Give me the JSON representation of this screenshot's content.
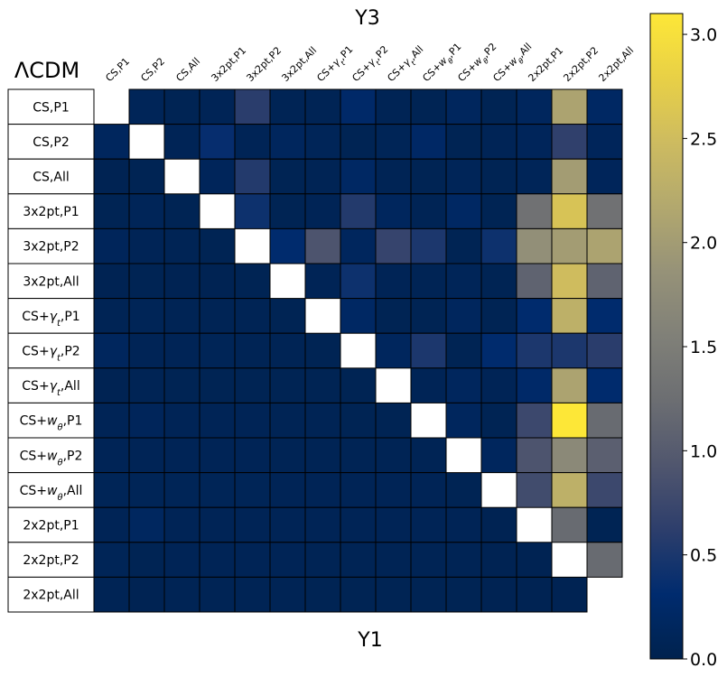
{
  "chart_data": {
    "type": "heatmap",
    "title": "ΛCDM",
    "top_label": "Y3",
    "bottom_label": "Y1",
    "row_labels": [
      "CS,P1",
      "CS,P2",
      "CS,All",
      "3x2pt,P1",
      "3x2pt,P2",
      "3x2pt,All",
      "CS+γt,P1",
      "CS+γt,P2",
      "CS+γt,All",
      "CS+wθ,P1",
      "CS+wθ,P2",
      "CS+wθ,All",
      "2x2pt,P1",
      "2x2pt,P2",
      "2x2pt,All"
    ],
    "col_labels": [
      "CS,P1",
      "CS,P2",
      "CS,All",
      "3x2pt,P1",
      "3x2pt,P2",
      "3x2pt,All",
      "CS+γt,P1",
      "CS+γt,P2",
      "CS+γt,All",
      "CS+wθ,P1",
      "CS+wθ,P2",
      "CS+wθ,All",
      "2x2pt,P1",
      "2x2pt,P2",
      "2x2pt,All"
    ],
    "colorbar": {
      "min": 0.0,
      "max": 3.1,
      "ticks": [
        "0.0",
        "0.5",
        "1.0",
        "1.5",
        "2.0",
        "2.5",
        "3.0"
      ],
      "tick_values": [
        0,
        0.5,
        1,
        1.5,
        2,
        2.5,
        3
      ],
      "colormap": "cividis"
    },
    "values": [
      [
        null,
        0.1,
        0.06,
        0.08,
        0.6,
        0.07,
        0.07,
        0.25,
        0.07,
        0.06,
        0.15,
        0.06,
        0.15,
        2.1,
        0.2
      ],
      [
        0.15,
        null,
        0.08,
        0.35,
        0.08,
        0.15,
        0.1,
        0.06,
        0.09,
        0.22,
        0.06,
        0.08,
        0.12,
        0.65,
        0.12
      ],
      [
        0.05,
        0.06,
        null,
        0.12,
        0.55,
        0.06,
        0.07,
        0.2,
        0.07,
        0.06,
        0.1,
        0.06,
        0.1,
        2.0,
        0.12
      ],
      [
        0.06,
        0.1,
        0.06,
        null,
        0.4,
        0.06,
        0.08,
        0.55,
        0.15,
        0.07,
        0.2,
        0.06,
        1.3,
        2.6,
        1.3
      ],
      [
        0.12,
        0.08,
        0.07,
        0.06,
        null,
        0.3,
        0.9,
        0.15,
        0.7,
        0.5,
        0.06,
        0.4,
        1.8,
        2.0,
        2.1
      ],
      [
        0.05,
        0.06,
        0.05,
        0.05,
        0.06,
        null,
        0.08,
        0.4,
        0.08,
        0.07,
        0.1,
        0.06,
        1.1,
        2.5,
        1.1
      ],
      [
        0.07,
        0.09,
        0.07,
        0.07,
        0.07,
        0.06,
        null,
        0.2,
        0.06,
        0.06,
        0.15,
        0.06,
        0.3,
        2.3,
        0.3
      ],
      [
        0.15,
        0.08,
        0.08,
        0.09,
        0.07,
        0.07,
        0.06,
        null,
        0.15,
        0.5,
        0.06,
        0.3,
        0.5,
        0.5,
        0.6
      ],
      [
        0.05,
        0.07,
        0.06,
        0.06,
        0.06,
        0.06,
        0.06,
        0.06,
        null,
        0.08,
        0.15,
        0.08,
        0.25,
        2.1,
        0.3
      ],
      [
        0.08,
        0.12,
        0.08,
        0.08,
        0.08,
        0.07,
        0.07,
        0.06,
        0.06,
        null,
        0.15,
        0.06,
        0.75,
        3.1,
        1.2
      ],
      [
        0.08,
        0.08,
        0.08,
        0.08,
        0.08,
        0.07,
        0.07,
        0.07,
        0.07,
        0.07,
        null,
        0.15,
        0.9,
        1.7,
        1.05
      ],
      [
        0.09,
        0.09,
        0.09,
        0.09,
        0.09,
        0.08,
        0.08,
        0.08,
        0.08,
        0.08,
        0.06,
        null,
        0.8,
        2.3,
        0.75
      ],
      [
        0.08,
        0.16,
        0.08,
        0.08,
        0.08,
        0.08,
        0.08,
        0.08,
        0.08,
        0.08,
        0.08,
        0.05,
        null,
        1.2,
        0.06
      ],
      [
        0.09,
        0.06,
        0.08,
        0.08,
        0.08,
        0.08,
        0.07,
        0.07,
        0.07,
        0.07,
        0.07,
        0.05,
        0.05,
        null,
        1.2
      ],
      [
        0.07,
        0.05,
        0.07,
        0.07,
        0.07,
        0.07,
        0.06,
        0.06,
        0.06,
        0.06,
        0.06,
        0.05,
        0.05,
        0.05,
        null
      ]
    ]
  }
}
